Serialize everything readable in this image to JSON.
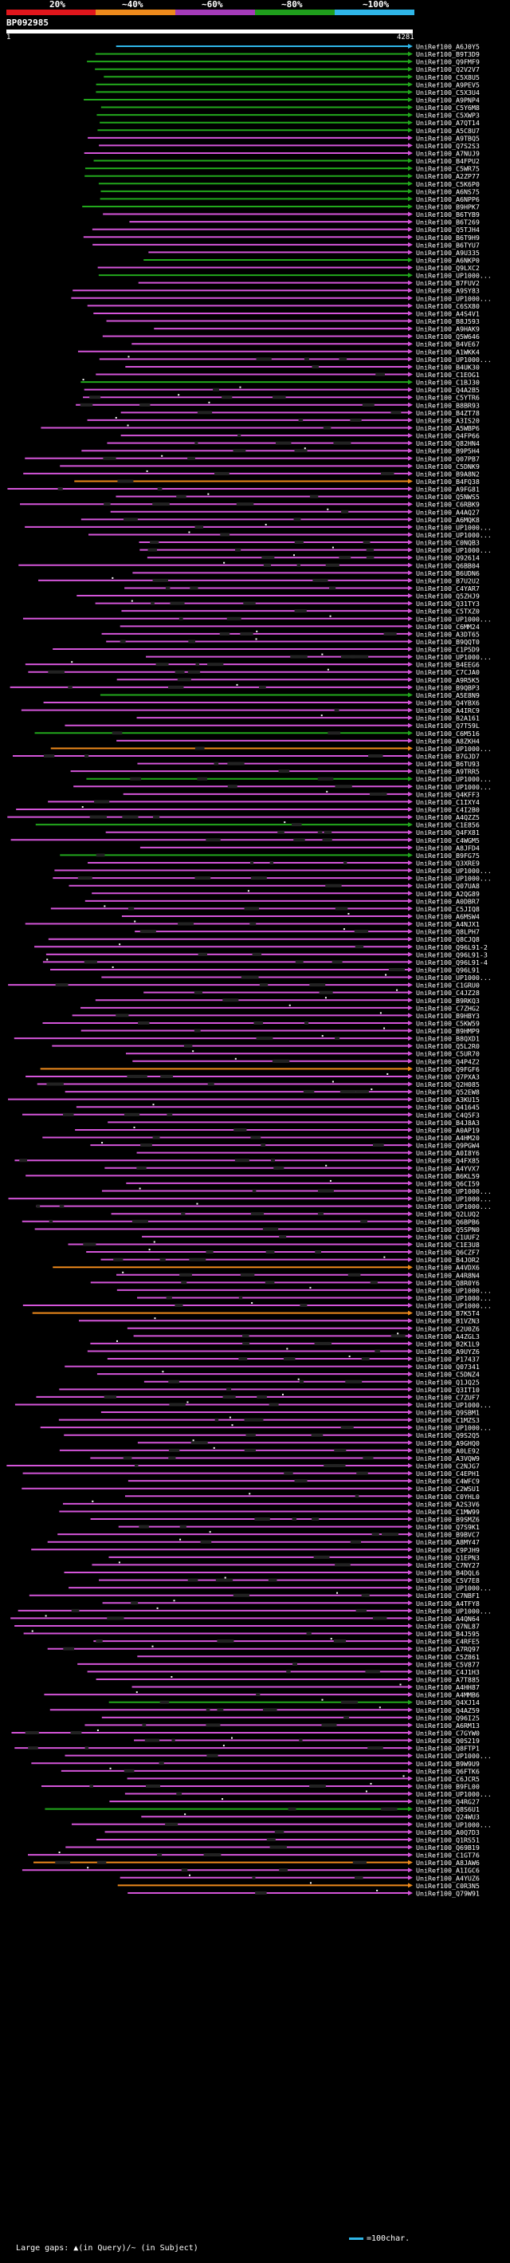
{
  "legend": {
    "labels": [
      "20%",
      "~40%",
      "~60%",
      "~80%",
      "~100%"
    ],
    "colors": [
      "#e0161c",
      "#ee8a1c",
      "#a53bba",
      "#1f9e1c",
      "#2fb6e8"
    ]
  },
  "query": {
    "id": "BP092985",
    "start_label": "1",
    "end_label": "4281",
    "length": 4281
  },
  "hits": [
    "UniRef100_A6J0Y5",
    "UniRef100_B9T3D9",
    "UniRef100_Q9FMF9",
    "UniRef100_Q2V2V7",
    "UniRef100_C5X8U5",
    "UniRef100_A9PEV5",
    "UniRef100_C5X3U4",
    "UniRef100_A9PNP4",
    "UniRef100_C5Y6M8",
    "UniRef100_C5XWP3",
    "UniRef100_A7QT14",
    "UniRef100_A5C8U7",
    "UniRef100_A9TBQ5",
    "UniRef100_Q7S2S3",
    "UniRef100_A7NUJ9",
    "UniRef100_B4FPU2",
    "UniRef100_C5WR75",
    "UniRef100_A2ZP77",
    "UniRef100_C5K6P0",
    "UniRef100_A6NS75",
    "UniRef100_A6NPP6",
    "UniRef100_B9HPK7",
    "UniRef100_B6TYB9",
    "UniRef100_B6T269",
    "UniRef100_Q5TJH4",
    "UniRef100_B6T9H9",
    "UniRef100_B6TYU7",
    "UniRef100_A9U335",
    "UniRef100_A6NKP0",
    "UniRef100_Q9LXC2",
    "UniRef100_UP1000...",
    "UniRef100_B7FUV2",
    "UniRef100_A9SY83",
    "UniRef100_UP1000...",
    "UniRef100_C6SX80",
    "UniRef100_A4S4V1",
    "UniRef100_B8J593",
    "UniRef100_A9HAK9",
    "UniRef100_Q5W646",
    "UniRef100_B4VE67",
    "UniRef100_A1WKK4",
    "UniRef100_UP1000...",
    "UniRef100_B4UK30",
    "UniRef100_C1EOG1",
    "UniRef100_C1BJ30",
    "UniRef100_Q4A2B5",
    "UniRef100_C5YTR6",
    "UniRef100_B8BR93",
    "UniRef100_B4ZT78",
    "UniRef100_A3IS20",
    "UniRef100_A5WBP6",
    "UniRef100_Q4FP66",
    "UniRef100_Q82HN4",
    "UniRef100_B9P5H4",
    "UniRef100_Q07PB7",
    "UniRef100_C5DNK9",
    "UniRef100_B9A8N2",
    "UniRef100_B4FQ38",
    "UniRef100_A9FG81",
    "UniRef100_Q5NWS5",
    "UniRef100_C6RBK9",
    "UniRef100_A4AQ27",
    "UniRef100_A6MQK8",
    "UniRef100_UP1000...",
    "UniRef100_UP1000...",
    "UniRef100_C0NQB3",
    "UniRef100_UP1000...",
    "UniRef100_Q92614",
    "UniRef100_Q6BB04",
    "UniRef100_B6UDN6",
    "UniRef100_B7U2U2",
    "UniRef100_C4YAR7",
    "UniRef100_Q5ZHJ9",
    "UniRef100_Q31TY3",
    "UniRef100_C5TXZ0",
    "UniRef100_UP1000...",
    "UniRef100_C6MM24",
    "UniRef100_A3DT65",
    "UniRef100_B9QQT0",
    "UniRef100_C1P5D9",
    "UniRef100_UP1000...",
    "UniRef100_B4EEG6",
    "UniRef100_C7CJA0",
    "UniRef100_A9R5K5",
    "UniRef100_B9QBP3",
    "UniRef100_A5E8N9",
    "UniRef100_Q4YBX6",
    "UniRef100_A4IRC9",
    "UniRef100_B2A161",
    "UniRef100_Q7T59L",
    "UniRef100_C6M516",
    "UniRef100_A8ZKH4",
    "UniRef100_UP1000...",
    "UniRef100_B7GJD7",
    "UniRef100_B6TU93",
    "UniRef100_A9TRR5",
    "UniRef100_UP1000...",
    "UniRef100_UP1000...",
    "UniRef100_Q4KFF3",
    "UniRef100_C1IXY4",
    "UniRef100_C4I2B0",
    "UniRef100_A4QZZ5",
    "UniRef100_C1E856",
    "UniRef100_Q4FX81",
    "UniRef100_C4WGM5",
    "UniRef100_A8JFD4",
    "UniRef100_B9FG75",
    "UniRef100_Q3XRE9",
    "UniRef100_UP1000...",
    "UniRef100_UP1000...",
    "UniRef100_Q07UA8",
    "UniRef100_A2QG89",
    "UniRef100_A0DBR7",
    "UniRef100_C5JIQ8",
    "UniRef100_A6MSW4",
    "UniRef100_A4NJX1",
    "UniRef100_Q8LPH7",
    "UniRef100_Q8CJQ8",
    "UniRef100_Q96L91-2",
    "UniRef100_Q96L91-3",
    "UniRef100_Q96L91-4",
    "UniRef100_Q96L91",
    "UniRef100_UP1000...",
    "UniRef100_C1GRU0",
    "UniRef100_C4JZ28",
    "UniRef100_B9RKQ3",
    "UniRef100_C7ZHG2",
    "UniRef100_B9HBY3",
    "UniRef100_C5KW59",
    "UniRef100_B9HMP9",
    "UniRef100_B8QXD1",
    "UniRef100_Q5L2R0",
    "UniRef100_C5UR70",
    "UniRef100_Q4P4Z2",
    "UniRef100_Q9FGF6",
    "UniRef100_Q7PXA3",
    "UniRef100_Q2H085",
    "UniRef100_Q52EW8",
    "UniRef100_A3KU15",
    "UniRef100_Q41645",
    "UniRef100_C4Q5F3",
    "UniRef100_B4J8A3",
    "UniRef100_A0AP19",
    "UniRef100_A4HM20",
    "UniRef100_Q9PGW4",
    "UniRef100_A0I8Y6",
    "UniRef100_Q4FX85",
    "UniRef100_A4YVX7",
    "UniRef100_B6KL59",
    "UniRef100_Q6CI59",
    "UniRef100_UP1000...",
    "UniRef100_UP1000...",
    "UniRef100_UP1000...",
    "UniRef100_Q2LUQ2",
    "UniRef100_Q6BPB6",
    "UniRef100_Q5SPN0",
    "UniRef100_C1UUF2",
    "UniRef100_C1E3U8",
    "UniRef100_Q6CZF7",
    "UniRef100_B4JOR2",
    "UniRef100_A4VDX6",
    "UniRef100_A4R8N4",
    "UniRef100_Q8R0Y6",
    "UniRef100_UP1000...",
    "UniRef100_UP1000...",
    "UniRef100_UP1000...",
    "UniRef100_B7K5T4",
    "UniRef100_B1VZN3",
    "UniRef100_C2U0Z6",
    "UniRef100_A4ZGL3",
    "UniRef100_B2K1L9",
    "UniRef100_A9UYZ6",
    "UniRef100_P17437",
    "UniRef100_Q07341",
    "UniRef100_C5DNZ4",
    "UniRef100_Q1JQ25",
    "UniRef100_Q3IT10",
    "UniRef100_C7ZUF7",
    "UniRef100_UP1000...",
    "UniRef100_Q9SBM1",
    "UniRef100_C1MZS3",
    "UniRef100_UP1000...",
    "UniRef100_Q9S2Q5",
    "UniRef100_A9GHQ0",
    "UniRef100_A0LE92",
    "UniRef100_A3VQW9",
    "UniRef100_C2NJG7",
    "UniRef100_C4EPH1",
    "UniRef100_C4WFC9",
    "UniRef100_C2WSU1",
    "UniRef100_C0YHL0",
    "UniRef100_A2S3V6",
    "UniRef100_C1MW99",
    "UniRef100_B9SMZ6",
    "UniRef100_Q7S9K1",
    "UniRef100_B9BVC7",
    "UniRef100_A8MY47",
    "UniRef100_C9PJH9",
    "UniRef100_Q1EPN3",
    "UniRef100_C7NY27",
    "UniRef100_B4DQL6",
    "UniRef100_C5V7E8",
    "UniRef100_UP1000...",
    "UniRef100_C7NBF1",
    "UniRef100_A4TFY8",
    "UniRef100_UP1000...",
    "UniRef100_A4QN64",
    "UniRef100_Q7NL87",
    "UniRef100_B4J595",
    "UniRef100_C4RFE5",
    "UniRef100_A7RQ97",
    "UniRef100_C5Z861",
    "UniRef100_C5V877",
    "UniRef100_C4J1H3",
    "UniRef100_A7T885",
    "UniRef100_A4HH87",
    "UniRef100_A4MMB6",
    "UniRef100_Q4XJ14",
    "UniRef100_Q4AZ59",
    "UniRef100_Q96I25",
    "UniRef100_A6RM13",
    "UniRef100_C7GYW0",
    "UniRef100_Q0S219",
    "UniRef100_Q8FTP1",
    "UniRef100_UP1000...",
    "UniRef100_B9W9U9",
    "UniRef100_Q6FTK6",
    "UniRef100_C6JCR5",
    "UniRef100_B9FL00",
    "UniRef100_UP1000...",
    "UniRef100_Q4RG27",
    "UniRef100_Q8S6U1",
    "UniRef100_Q24WU3",
    "UniRef100_UP1000...",
    "UniRef100_A0Q7D3",
    "UniRef100_Q1RS51",
    "UniRef100_Q69B19",
    "UniRef100_C1GT76",
    "UniRef100_A8JAW6",
    "UniRef100_A1IGC6",
    "UniRef100_A4YUZ6",
    "UniRef100_C0R3N5",
    "UniRef100_Q79W91"
  ],
  "footer": {
    "large_gaps_text": "Large gaps: ▲(in Query)/~ (in Subject)",
    "scale_text": "=100char."
  }
}
